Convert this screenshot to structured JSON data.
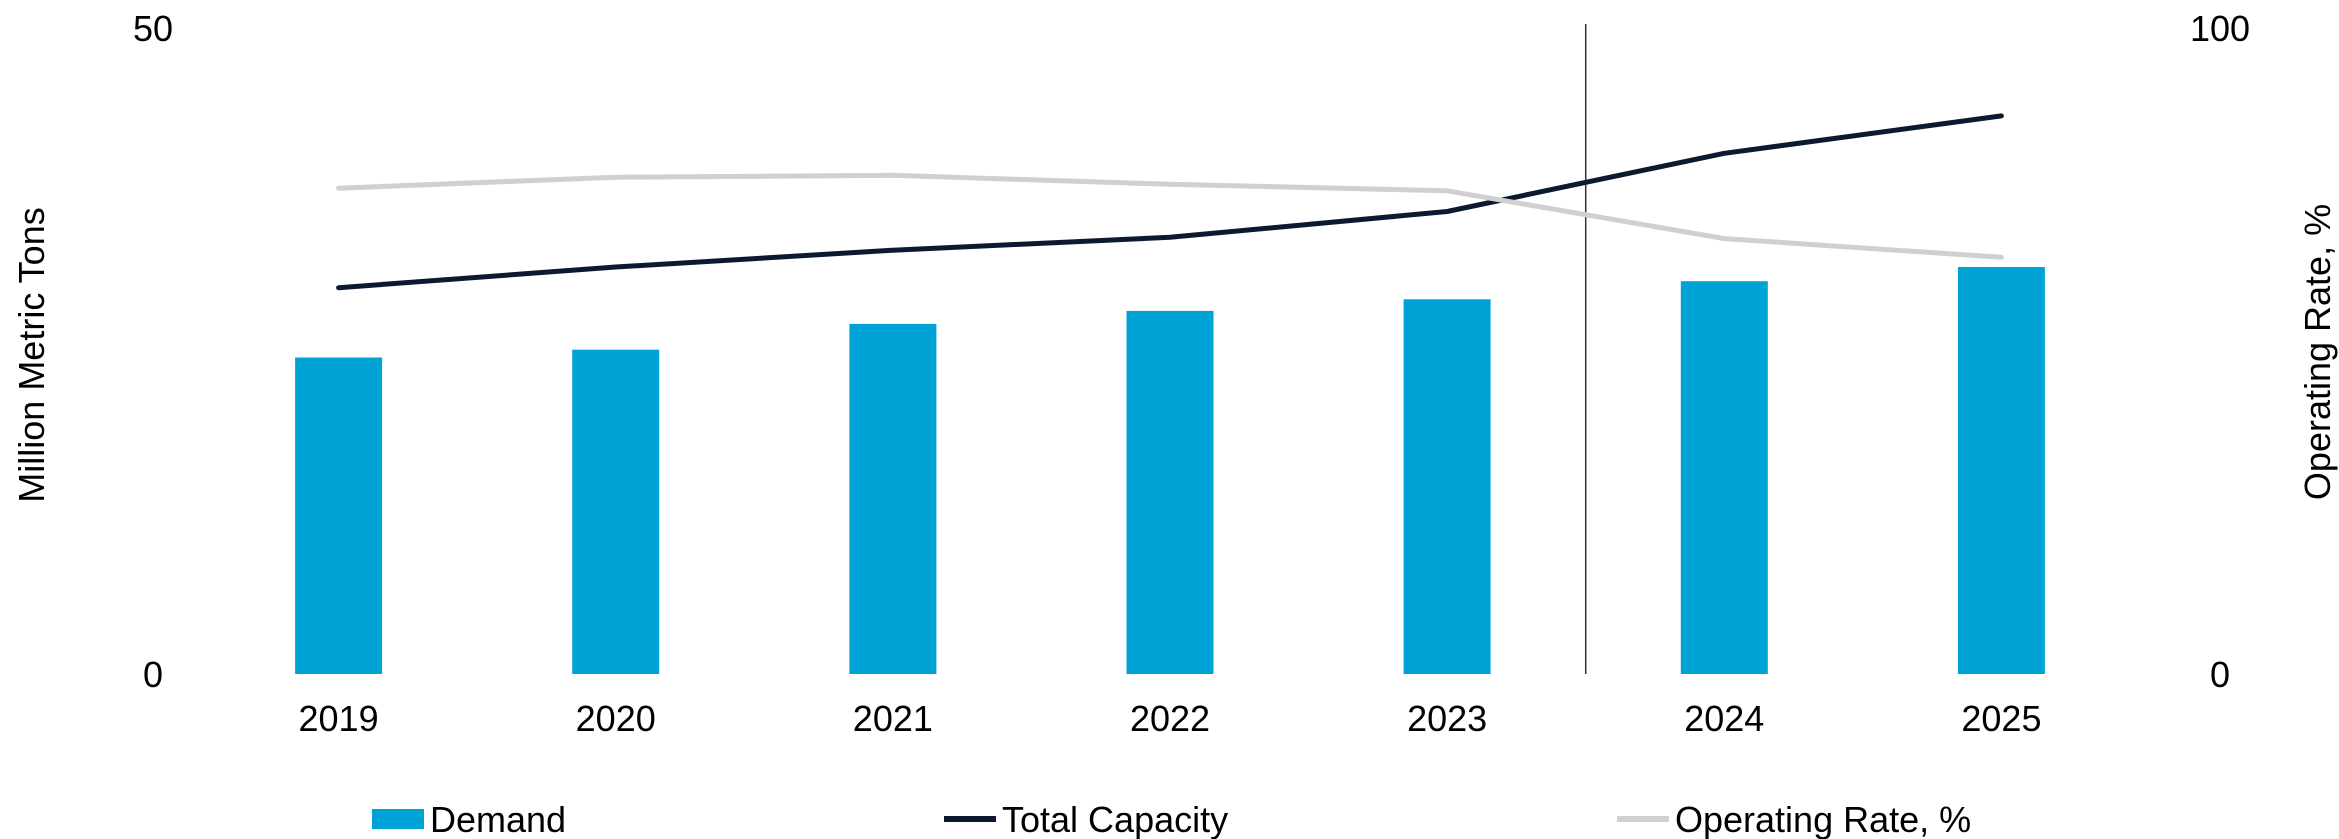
{
  "chart_data": {
    "type": "bar",
    "categories": [
      "2019",
      "2020",
      "2021",
      "2022",
      "2023",
      "2024",
      "2025"
    ],
    "series": [
      {
        "name": "Demand",
        "type": "bar",
        "axis": "left",
        "color": "#00a3d6",
        "values": [
          24.5,
          25.1,
          27.1,
          28.1,
          29.0,
          30.4,
          31.5
        ]
      },
      {
        "name": "Total Capacity",
        "type": "line",
        "axis": "left",
        "color": "#0b1a2e",
        "values": [
          29.9,
          31.5,
          32.8,
          33.8,
          35.8,
          40.3,
          43.2
        ]
      },
      {
        "name": "Operating Rate, %",
        "type": "line",
        "axis": "right",
        "color": "#d0d0d0",
        "values": [
          75.2,
          76.9,
          77.2,
          75.8,
          74.8,
          67.4,
          64.5
        ]
      }
    ],
    "left_axis": {
      "label": "Million Metric Tons",
      "ylim": [
        0,
        50
      ],
      "ticks": [
        "0",
        "50"
      ]
    },
    "right_axis": {
      "label": "Operating Rate, %",
      "ylim": [
        0,
        100
      ],
      "ticks": [
        "0",
        "100"
      ]
    },
    "divider_between": [
      "2023",
      "2024"
    ],
    "legend_position": "bottom",
    "grid": false
  }
}
